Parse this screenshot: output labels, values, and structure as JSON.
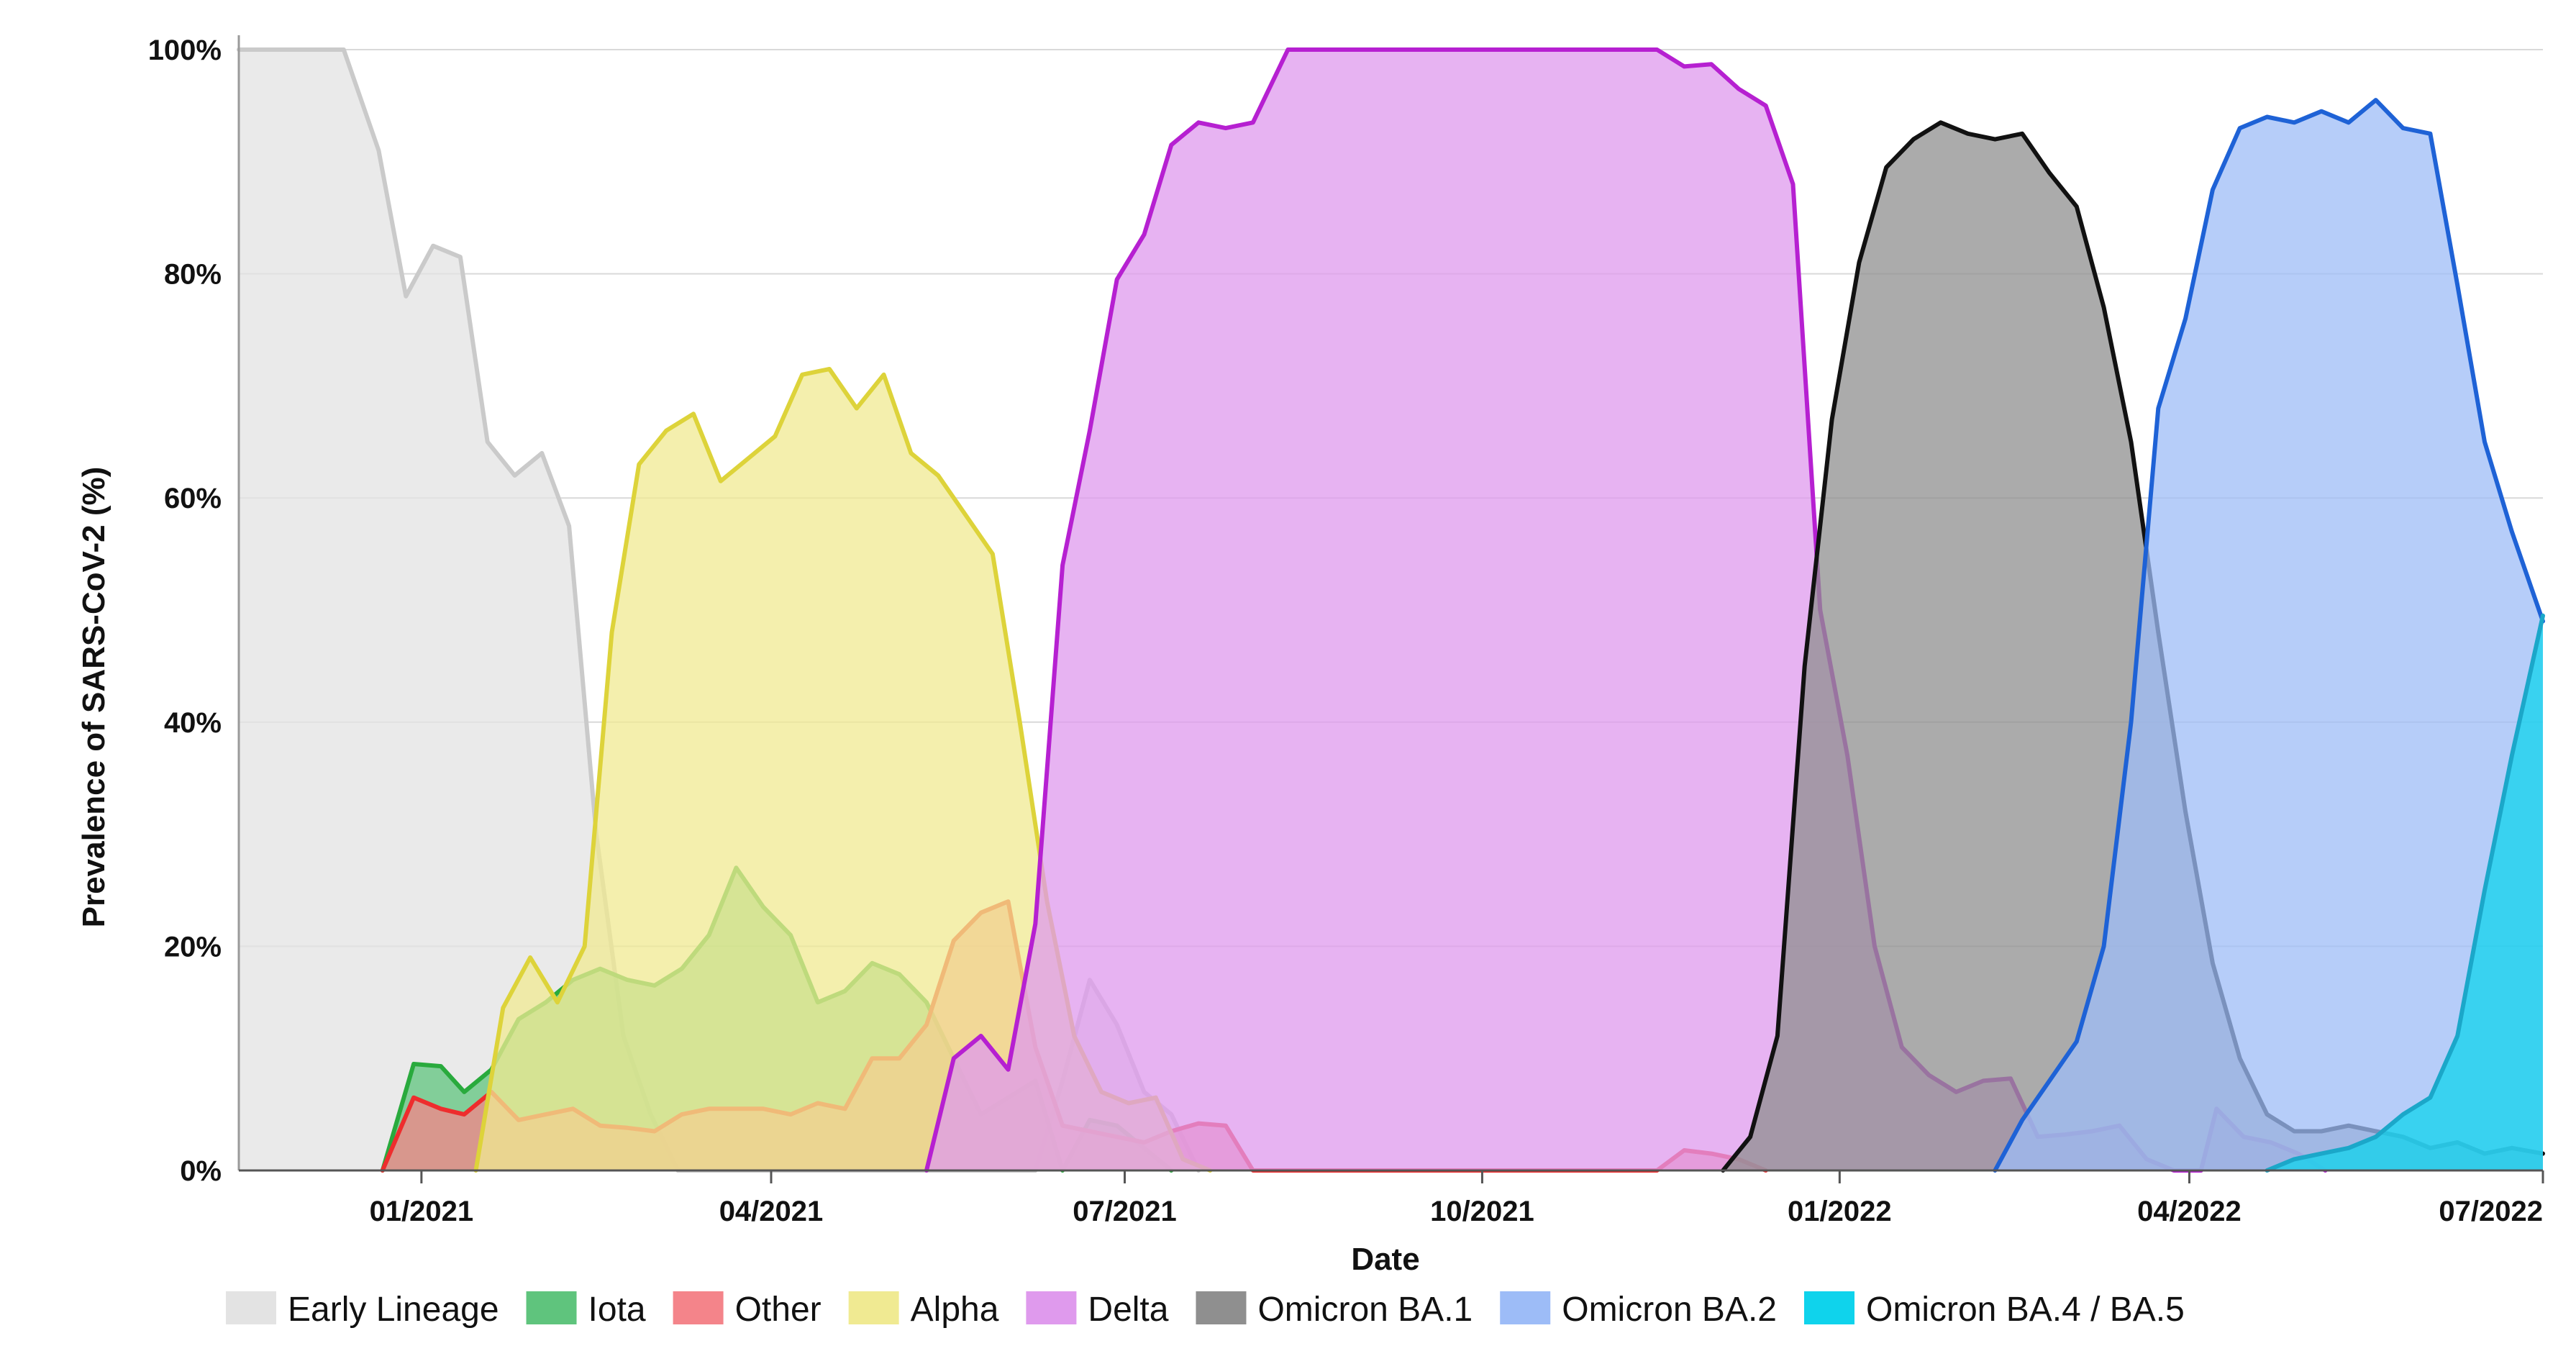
{
  "chart_data": {
    "type": "area",
    "title": "",
    "xlabel": "Date",
    "ylabel": "Prevalence of SARS-CoV-2 (%)",
    "ylim": [
      0,
      100
    ],
    "xlim": [
      "2020-11-15",
      "2022-07-01"
    ],
    "y_ticks": [
      {
        "value": 0,
        "label": "0%"
      },
      {
        "value": 20,
        "label": "20%"
      },
      {
        "value": 40,
        "label": "40%"
      },
      {
        "value": 60,
        "label": "60%"
      },
      {
        "value": 80,
        "label": "80%"
      },
      {
        "value": 100,
        "label": "100%"
      }
    ],
    "x_ticks": [
      {
        "value": "2021-01-01",
        "label": "01/2021"
      },
      {
        "value": "2021-04-01",
        "label": "04/2021"
      },
      {
        "value": "2021-07-01",
        "label": "07/2021"
      },
      {
        "value": "2021-10-01",
        "label": "10/2021"
      },
      {
        "value": "2022-01-01",
        "label": "01/2022"
      },
      {
        "value": "2022-04-01",
        "label": "04/2022"
      },
      {
        "value": "2022-07-01",
        "label": "07/2022"
      }
    ],
    "grid": {
      "horizontal": true,
      "vertical": false
    },
    "legend_position": "bottom",
    "series": [
      {
        "name": "Early Lineage",
        "fill": "#e3e3e3",
        "stroke": "#cacaca",
        "points": [
          [
            "2020-11-15",
            100
          ],
          [
            "2020-12-01",
            100
          ],
          [
            "2020-12-12",
            100
          ],
          [
            "2020-12-21",
            91
          ],
          [
            "2020-12-28",
            78
          ],
          [
            "2021-01-04",
            82.5
          ],
          [
            "2021-01-11",
            81.5
          ],
          [
            "2021-01-18",
            65
          ],
          [
            "2021-01-25",
            62
          ],
          [
            "2021-02-01",
            64
          ],
          [
            "2021-02-08",
            57.5
          ],
          [
            "2021-02-15",
            30
          ],
          [
            "2021-02-22",
            12
          ],
          [
            "2021-03-01",
            5
          ],
          [
            "2021-03-08",
            0
          ],
          [
            "2021-06-08",
            0
          ],
          [
            "2021-06-15",
            8
          ],
          [
            "2021-06-22",
            17
          ],
          [
            "2021-06-29",
            13
          ],
          [
            "2021-07-06",
            7
          ],
          [
            "2021-07-13",
            5
          ],
          [
            "2021-07-20",
            0
          ]
        ]
      },
      {
        "name": "Iota",
        "fill": "#5fc47d",
        "stroke": "#29aa3d",
        "points": [
          [
            "2020-12-22",
            0
          ],
          [
            "2020-12-30",
            9.5
          ],
          [
            "2021-01-06",
            9.3
          ],
          [
            "2021-01-12",
            7
          ],
          [
            "2021-01-19",
            9
          ],
          [
            "2021-01-26",
            13.5
          ],
          [
            "2021-02-02",
            15
          ],
          [
            "2021-02-09",
            17
          ],
          [
            "2021-02-16",
            18
          ],
          [
            "2021-02-23",
            17
          ],
          [
            "2021-03-02",
            16.5
          ],
          [
            "2021-03-09",
            18
          ],
          [
            "2021-03-16",
            21
          ],
          [
            "2021-03-23",
            27
          ],
          [
            "2021-03-30",
            23.5
          ],
          [
            "2021-04-06",
            21
          ],
          [
            "2021-04-13",
            15
          ],
          [
            "2021-04-20",
            16
          ],
          [
            "2021-04-27",
            18.5
          ],
          [
            "2021-05-04",
            17.5
          ],
          [
            "2021-05-11",
            15
          ],
          [
            "2021-05-18",
            10
          ],
          [
            "2021-05-25",
            5
          ],
          [
            "2021-06-01",
            6.5
          ],
          [
            "2021-06-08",
            8
          ],
          [
            "2021-06-15",
            0
          ],
          [
            "2021-06-22",
            4.5
          ],
          [
            "2021-06-29",
            4
          ],
          [
            "2021-07-06",
            2
          ],
          [
            "2021-07-13",
            0
          ]
        ]
      },
      {
        "name": "Other",
        "fill": "#f4848a",
        "stroke": "#ee2d2d",
        "points": [
          [
            "2020-12-22",
            0
          ],
          [
            "2020-12-30",
            6.5
          ],
          [
            "2021-01-06",
            5.5
          ],
          [
            "2021-01-12",
            5
          ],
          [
            "2021-01-19",
            7
          ],
          [
            "2021-01-26",
            4.5
          ],
          [
            "2021-02-02",
            5
          ],
          [
            "2021-02-09",
            5.5
          ],
          [
            "2021-02-16",
            4
          ],
          [
            "2021-02-23",
            3.8
          ],
          [
            "2021-03-02",
            3.5
          ],
          [
            "2021-03-09",
            5
          ],
          [
            "2021-03-16",
            5.5
          ],
          [
            "2021-03-23",
            5.5
          ],
          [
            "2021-03-30",
            5.5
          ],
          [
            "2021-04-06",
            5
          ],
          [
            "2021-04-13",
            6
          ],
          [
            "2021-04-20",
            5.5
          ],
          [
            "2021-04-27",
            10
          ],
          [
            "2021-05-04",
            10
          ],
          [
            "2021-05-11",
            13
          ],
          [
            "2021-05-18",
            20.5
          ],
          [
            "2021-05-25",
            23
          ],
          [
            "2021-06-01",
            24
          ],
          [
            "2021-06-08",
            11
          ],
          [
            "2021-06-15",
            4
          ],
          [
            "2021-06-22",
            3.5
          ],
          [
            "2021-06-29",
            3
          ],
          [
            "2021-07-06",
            2.5
          ],
          [
            "2021-07-13",
            3.5
          ],
          [
            "2021-07-20",
            4.2
          ],
          [
            "2021-07-27",
            4
          ],
          [
            "2021-08-03",
            0
          ],
          [
            "2021-11-15",
            0
          ],
          [
            "2021-11-22",
            1.8
          ],
          [
            "2021-11-29",
            1.5
          ],
          [
            "2021-12-06",
            1
          ],
          [
            "2021-12-13",
            0
          ]
        ]
      },
      {
        "name": "Alpha",
        "fill": "#f0ea92",
        "stroke": "#ddd33a",
        "points": [
          [
            "2021-01-15",
            0
          ],
          [
            "2021-01-22",
            14.5
          ],
          [
            "2021-01-29",
            19
          ],
          [
            "2021-02-05",
            15
          ],
          [
            "2021-02-12",
            20
          ],
          [
            "2021-02-19",
            48
          ],
          [
            "2021-02-26",
            63
          ],
          [
            "2021-03-05",
            66
          ],
          [
            "2021-03-12",
            67.5
          ],
          [
            "2021-03-19",
            61.5
          ],
          [
            "2021-03-26",
            63.5
          ],
          [
            "2021-04-02",
            65.5
          ],
          [
            "2021-04-09",
            71
          ],
          [
            "2021-04-16",
            71.5
          ],
          [
            "2021-04-23",
            68
          ],
          [
            "2021-04-30",
            71
          ],
          [
            "2021-05-07",
            64
          ],
          [
            "2021-05-14",
            62
          ],
          [
            "2021-05-21",
            58.5
          ],
          [
            "2021-05-28",
            55
          ],
          [
            "2021-06-04",
            40
          ],
          [
            "2021-06-11",
            24
          ],
          [
            "2021-06-18",
            12
          ],
          [
            "2021-06-25",
            7
          ],
          [
            "2021-07-02",
            6
          ],
          [
            "2021-07-09",
            6.5
          ],
          [
            "2021-07-16",
            1
          ],
          [
            "2021-07-23",
            0
          ]
        ]
      },
      {
        "name": "Delta",
        "fill": "#df9aed",
        "stroke": "#b620d1",
        "points": [
          [
            "2021-05-11",
            0
          ],
          [
            "2021-05-18",
            10
          ],
          [
            "2021-05-25",
            12
          ],
          [
            "2021-06-01",
            9
          ],
          [
            "2021-06-08",
            22
          ],
          [
            "2021-06-15",
            54
          ],
          [
            "2021-06-22",
            66
          ],
          [
            "2021-06-29",
            79.5
          ],
          [
            "2021-07-06",
            83.5
          ],
          [
            "2021-07-13",
            91.5
          ],
          [
            "2021-07-20",
            93.5
          ],
          [
            "2021-07-27",
            93
          ],
          [
            "2021-08-03",
            93.5
          ],
          [
            "2021-08-12",
            100
          ],
          [
            "2021-11-15",
            100
          ],
          [
            "2021-11-22",
            98.5
          ],
          [
            "2021-11-29",
            98.7
          ],
          [
            "2021-12-06",
            96.5
          ],
          [
            "2021-12-13",
            95
          ],
          [
            "2021-12-20",
            88
          ],
          [
            "2021-12-27",
            50
          ],
          [
            "2022-01-03",
            37
          ],
          [
            "2022-01-10",
            20
          ],
          [
            "2022-01-17",
            11
          ],
          [
            "2022-01-24",
            8.5
          ],
          [
            "2022-01-31",
            7
          ],
          [
            "2022-02-07",
            8
          ],
          [
            "2022-02-14",
            8.2
          ],
          [
            "2022-02-21",
            3
          ],
          [
            "2022-02-28",
            3.2
          ],
          [
            "2022-03-07",
            3.5
          ],
          [
            "2022-03-14",
            4
          ],
          [
            "2022-03-21",
            1
          ],
          [
            "2022-03-28",
            0
          ],
          [
            "2022-04-04",
            0
          ],
          [
            "2022-04-08",
            5.5
          ],
          [
            "2022-04-15",
            3
          ],
          [
            "2022-04-22",
            2.5
          ],
          [
            "2022-04-29",
            1.5
          ],
          [
            "2022-05-06",
            0
          ]
        ]
      },
      {
        "name": "Omicron BA.1",
        "fill": "#8f8f8f",
        "stroke": "#111111",
        "points": [
          [
            "2021-12-02",
            0
          ],
          [
            "2021-12-09",
            3
          ],
          [
            "2021-12-16",
            12
          ],
          [
            "2021-12-23",
            45
          ],
          [
            "2021-12-30",
            67
          ],
          [
            "2022-01-06",
            81
          ],
          [
            "2022-01-13",
            89.5
          ],
          [
            "2022-01-20",
            92
          ],
          [
            "2022-01-27",
            93.5
          ],
          [
            "2022-02-03",
            92.5
          ],
          [
            "2022-02-10",
            92
          ],
          [
            "2022-02-17",
            92.5
          ],
          [
            "2022-02-24",
            89
          ],
          [
            "2022-03-03",
            86
          ],
          [
            "2022-03-10",
            77
          ],
          [
            "2022-03-17",
            65
          ],
          [
            "2022-03-24",
            48
          ],
          [
            "2022-03-31",
            32
          ],
          [
            "2022-04-07",
            18.5
          ],
          [
            "2022-04-14",
            10
          ],
          [
            "2022-04-21",
            5
          ],
          [
            "2022-04-28",
            3.5
          ],
          [
            "2022-05-05",
            3.5
          ],
          [
            "2022-05-12",
            4
          ],
          [
            "2022-05-19",
            3.5
          ],
          [
            "2022-05-26",
            3
          ],
          [
            "2022-06-02",
            2
          ],
          [
            "2022-06-09",
            2.5
          ],
          [
            "2022-06-16",
            1.5
          ],
          [
            "2022-06-23",
            2
          ],
          [
            "2022-07-01",
            1.5
          ]
        ]
      },
      {
        "name": "Omicron BA.2",
        "fill": "#9dbcf7",
        "stroke": "#1e62d6",
        "points": [
          [
            "2022-02-10",
            0
          ],
          [
            "2022-02-17",
            4.5
          ],
          [
            "2022-02-24",
            8
          ],
          [
            "2022-03-03",
            11.5
          ],
          [
            "2022-03-10",
            20
          ],
          [
            "2022-03-17",
            40
          ],
          [
            "2022-03-24",
            68
          ],
          [
            "2022-03-31",
            76
          ],
          [
            "2022-04-07",
            87.5
          ],
          [
            "2022-04-14",
            93
          ],
          [
            "2022-04-21",
            94
          ],
          [
            "2022-04-28",
            93.5
          ],
          [
            "2022-05-05",
            94.5
          ],
          [
            "2022-05-12",
            93.5
          ],
          [
            "2022-05-19",
            95.5
          ],
          [
            "2022-05-26",
            93
          ],
          [
            "2022-06-02",
            92.5
          ],
          [
            "2022-06-09",
            79
          ],
          [
            "2022-06-16",
            65
          ],
          [
            "2022-06-23",
            57
          ],
          [
            "2022-07-01",
            49
          ]
        ]
      },
      {
        "name": "Omicron BA.4 / BA.5",
        "fill": "#0fd3ec",
        "stroke": "#1ba7c9",
        "points": [
          [
            "2022-04-21",
            0
          ],
          [
            "2022-04-28",
            1
          ],
          [
            "2022-05-05",
            1.5
          ],
          [
            "2022-05-12",
            2
          ],
          [
            "2022-05-19",
            3
          ],
          [
            "2022-05-26",
            5
          ],
          [
            "2022-06-02",
            6.5
          ],
          [
            "2022-06-09",
            12
          ],
          [
            "2022-06-16",
            25
          ],
          [
            "2022-06-23",
            37
          ],
          [
            "2022-07-01",
            49.5
          ]
        ]
      }
    ]
  }
}
